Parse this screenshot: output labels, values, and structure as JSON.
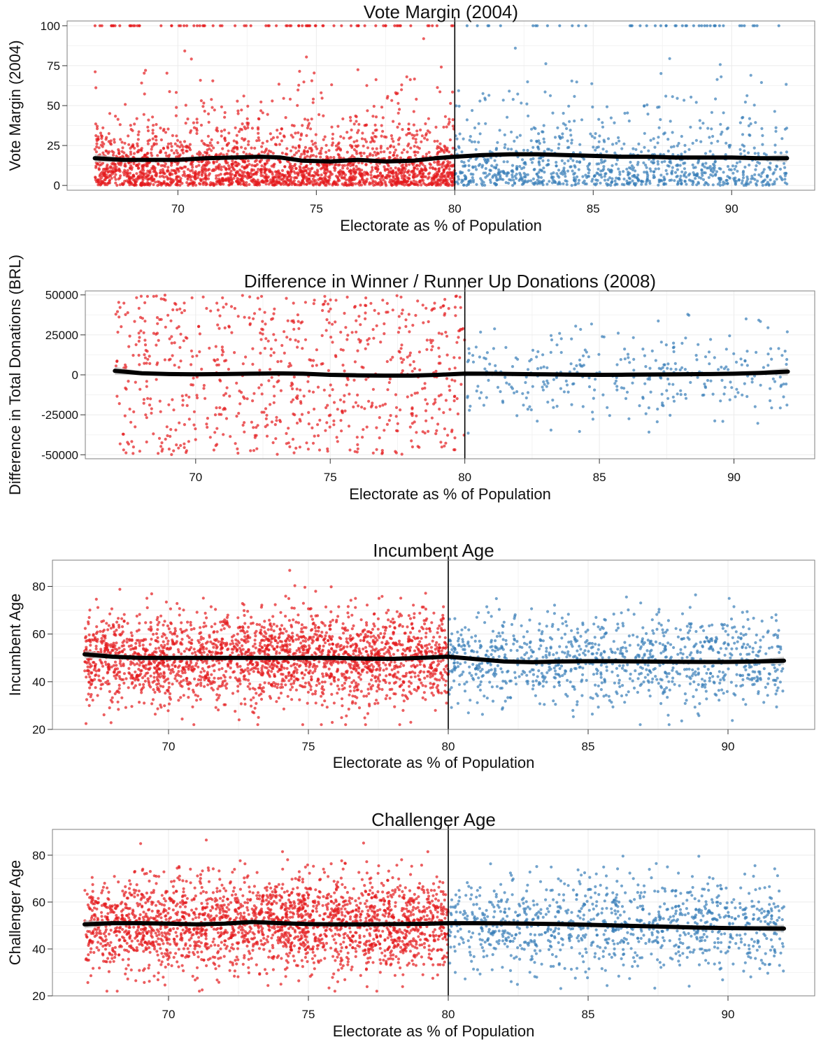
{
  "colors": {
    "left_points": "#e41a1c",
    "right_points": "#377eb8",
    "fit_line": "#000000",
    "confidence_band": "#bdbdbd",
    "grid": "#ebebeb",
    "cutoff_line": "#000000"
  },
  "chart_data": [
    {
      "type": "scatter",
      "title": "Vote Margin (2004)",
      "xlabel": "Electorate as % of Population",
      "ylabel": "Vote Margin (2004)",
      "xlim": [
        66,
        93
      ],
      "ylim": [
        -3,
        103
      ],
      "xticks": [
        70,
        75,
        80,
        85,
        90
      ],
      "yticks": [
        0,
        25,
        50,
        75,
        100
      ],
      "ytick_labels": [
        "0",
        "25",
        "50",
        "75",
        "100"
      ],
      "cutoff": 80,
      "grid": true,
      "fit_line": [
        [
          67,
          17
        ],
        [
          68,
          16
        ],
        [
          69,
          16
        ],
        [
          70,
          16
        ],
        [
          71,
          17
        ],
        [
          72,
          17.5
        ],
        [
          73,
          18
        ],
        [
          73.7,
          17.5
        ],
        [
          74.5,
          15.5
        ],
        [
          75.5,
          15
        ],
        [
          76.5,
          16
        ],
        [
          77.5,
          15
        ],
        [
          78.5,
          15.5
        ],
        [
          79.3,
          17
        ],
        [
          80,
          18
        ],
        [
          81,
          19
        ],
        [
          82,
          19.5
        ],
        [
          83,
          19.5
        ],
        [
          84,
          19
        ],
        [
          85,
          18.5
        ],
        [
          86,
          18
        ],
        [
          87,
          18
        ],
        [
          88,
          17.5
        ],
        [
          89,
          17.5
        ],
        [
          90,
          17.5
        ],
        [
          91,
          17
        ],
        [
          92,
          17
        ]
      ],
      "scatter_left": {
        "n": 2300,
        "x_range": [
          67,
          80
        ],
        "y_dist": "exponential",
        "y_mean": 14,
        "y_min": 0,
        "y_max": 100,
        "top_cluster_count": 80,
        "top_cluster_value": 100
      },
      "scatter_right": {
        "n": 1000,
        "x_range": [
          80,
          92
        ],
        "y_dist": "exponential",
        "y_mean": 15,
        "y_min": 0,
        "y_max": 100,
        "top_cluster_count": 45,
        "top_cluster_value": 100
      }
    },
    {
      "type": "scatter",
      "title": "Difference in Winner / Runner Up Donations (2008)",
      "xlabel": "Electorate as % of Population",
      "ylabel": "Difference in Total Donations (BRL)",
      "xlim": [
        65.9,
        93.0
      ],
      "ylim": [
        -52500,
        52500
      ],
      "xticks": [
        70,
        75,
        80,
        85,
        90
      ],
      "yticks": [
        -50000,
        -25000,
        0,
        25000,
        50000
      ],
      "ytick_labels": [
        "-50000",
        "-25000",
        "0",
        "25000",
        "50000"
      ],
      "cutoff": 80,
      "grid": true,
      "fit_line": [
        [
          67,
          2500
        ],
        [
          68,
          1000
        ],
        [
          69,
          500
        ],
        [
          70,
          300
        ],
        [
          71,
          500
        ],
        [
          72,
          700
        ],
        [
          73,
          900
        ],
        [
          74,
          700
        ],
        [
          75,
          0
        ],
        [
          76,
          -300
        ],
        [
          77,
          -500
        ],
        [
          78,
          -500
        ],
        [
          79,
          0
        ],
        [
          80,
          800
        ],
        [
          81,
          700
        ],
        [
          82,
          500
        ],
        [
          83,
          300
        ],
        [
          84,
          100
        ],
        [
          85,
          0
        ],
        [
          86,
          100
        ],
        [
          87,
          200
        ],
        [
          88,
          300
        ],
        [
          89,
          500
        ],
        [
          90,
          700
        ],
        [
          91,
          1200
        ],
        [
          92,
          2000
        ]
      ],
      "scatter_left": {
        "n": 750,
        "x_range": [
          67,
          80
        ],
        "y_dist": "uniform",
        "y_min": -50000,
        "y_max": 50000
      },
      "scatter_right": {
        "n": 330,
        "x_range": [
          80,
          92
        ],
        "y_dist": "normal",
        "y_mean": 0,
        "y_sd": 15000,
        "y_min": -50000,
        "y_max": 50000
      }
    },
    {
      "type": "scatter",
      "title": "Incumbent Age",
      "xlabel": "Electorate as % of Population",
      "ylabel": "Incumbent Age",
      "xlim": [
        65.85,
        93.1
      ],
      "ylim": [
        20,
        91
      ],
      "xticks": [
        70,
        75,
        80,
        85,
        90
      ],
      "yticks": [
        20,
        40,
        60,
        80
      ],
      "ytick_labels": [
        "20",
        "40",
        "60",
        "80"
      ],
      "cutoff": 80,
      "grid": true,
      "fit_line": [
        [
          67,
          51.5
        ],
        [
          68,
          50.5
        ],
        [
          69,
          50
        ],
        [
          70,
          50
        ],
        [
          71,
          50
        ],
        [
          72,
          50
        ],
        [
          73,
          50
        ],
        [
          74,
          50
        ],
        [
          75,
          50
        ],
        [
          76,
          50
        ],
        [
          77,
          49.7
        ],
        [
          78,
          49.6
        ],
        [
          79,
          50
        ],
        [
          80,
          50.5
        ],
        [
          81,
          49.5
        ],
        [
          82,
          48.5
        ],
        [
          83,
          48.2
        ],
        [
          84,
          48.5
        ],
        [
          85,
          48.6
        ],
        [
          86,
          48.6
        ],
        [
          87,
          48.5
        ],
        [
          88,
          48.4
        ],
        [
          89,
          48.3
        ],
        [
          90,
          48.3
        ],
        [
          91,
          48.5
        ],
        [
          92,
          48.8
        ]
      ],
      "scatter_left": {
        "n": 2300,
        "x_range": [
          67,
          80
        ],
        "y_dist": "normal",
        "y_mean": 50,
        "y_sd": 10,
        "y_min": 22,
        "y_max": 88
      },
      "scatter_right": {
        "n": 1000,
        "x_range": [
          80,
          92
        ],
        "y_dist": "normal",
        "y_mean": 49,
        "y_sd": 9.5,
        "y_min": 22,
        "y_max": 88
      }
    },
    {
      "type": "scatter",
      "title": "Challenger Age",
      "xlabel": "Electorate as % of Population",
      "ylabel": "Challenger Age",
      "xlim": [
        65.85,
        93.1
      ],
      "ylim": [
        20,
        91
      ],
      "xticks": [
        70,
        75,
        80,
        85,
        90
      ],
      "yticks": [
        20,
        40,
        60,
        80
      ],
      "ytick_labels": [
        "20",
        "40",
        "60",
        "80"
      ],
      "cutoff": 80,
      "grid": true,
      "fit_line": [
        [
          67,
          50.5
        ],
        [
          68,
          51
        ],
        [
          69,
          51
        ],
        [
          70,
          50.8
        ],
        [
          71,
          50.5
        ],
        [
          72,
          50.8
        ],
        [
          73,
          51.5
        ],
        [
          74,
          51
        ],
        [
          75,
          50.6
        ],
        [
          76,
          50.5
        ],
        [
          77,
          50.5
        ],
        [
          78,
          50.6
        ],
        [
          79,
          50.7
        ],
        [
          80,
          51
        ],
        [
          81,
          51
        ],
        [
          82,
          50.9
        ],
        [
          83,
          50.8
        ],
        [
          84,
          50.6
        ],
        [
          85,
          50.3
        ],
        [
          86,
          50
        ],
        [
          87,
          49.7
        ],
        [
          88,
          49.4
        ],
        [
          89,
          49.1
        ],
        [
          90,
          48.9
        ],
        [
          91,
          48.8
        ],
        [
          92,
          48.7
        ]
      ],
      "scatter_left": {
        "n": 2300,
        "x_range": [
          67,
          80
        ],
        "y_dist": "normal",
        "y_mean": 51,
        "y_sd": 10.5,
        "y_min": 22,
        "y_max": 88
      },
      "scatter_right": {
        "n": 1000,
        "x_range": [
          80,
          92
        ],
        "y_dist": "normal",
        "y_mean": 50,
        "y_sd": 10,
        "y_min": 22,
        "y_max": 88
      }
    }
  ]
}
